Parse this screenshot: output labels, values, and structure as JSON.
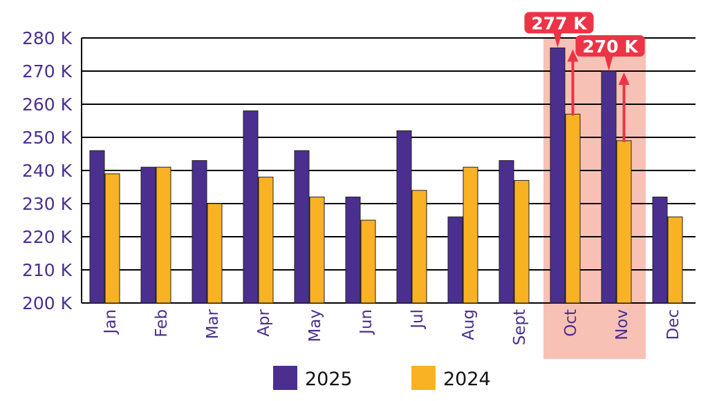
{
  "chart_data": {
    "type": "bar",
    "title": "",
    "xlabel": "",
    "ylabel": "",
    "ylim": [
      200,
      280
    ],
    "yticks": [
      200,
      210,
      220,
      230,
      240,
      250,
      260,
      270,
      280
    ],
    "ytick_labels": [
      "200 K",
      "210 K",
      "220 K",
      "230 K",
      "240 K",
      "250 K",
      "260 K",
      "270 K",
      "280 K"
    ],
    "categories": [
      "Jan",
      "Feb",
      "Mar",
      "Apr",
      "May",
      "Jun",
      "Jul",
      "Aug",
      "Sept",
      "Oct",
      "Nov",
      "Dec"
    ],
    "series": [
      {
        "name": "2025",
        "color": "#4a2f8f",
        "values": [
          246,
          241,
          243,
          258,
          246,
          232,
          252,
          226,
          243,
          277,
          270,
          232
        ]
      },
      {
        "name": "2024",
        "color": "#f9b224",
        "values": [
          239,
          241,
          230,
          238,
          232,
          225,
          234,
          241,
          237,
          257,
          249,
          226
        ]
      }
    ],
    "grid": true,
    "legend_position": "bottom",
    "highlight": {
      "categories": [
        "Oct",
        "Nov"
      ],
      "color": "#f8c1b6"
    },
    "annotations": [
      {
        "category": "Oct",
        "value": 277,
        "label": "277 K",
        "from": 257
      },
      {
        "category": "Nov",
        "value": 270,
        "label": "270 K",
        "from": 249
      }
    ],
    "annotation_color": "#ec3446"
  }
}
